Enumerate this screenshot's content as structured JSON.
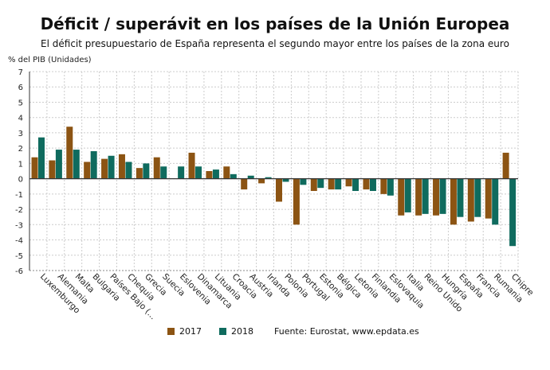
{
  "title": "Déficit / superávit en los países de la Unión Europea",
  "subtitle": "El déficit presupuestario de España representa el segundo mayor entre los países de la zona euro",
  "source": "Fuente: Eurostat, www.epdata.es",
  "chart_data": {
    "type": "bar",
    "ylabel": "% del PIB (Unidades)",
    "ylim": [
      -6,
      7
    ],
    "yticks": [
      -6,
      -5,
      -4,
      -3,
      -2,
      -1,
      0,
      1,
      2,
      3,
      4,
      5,
      6,
      7
    ],
    "grid": true,
    "legend_position": "bottom",
    "categories": [
      "Luxemburgo",
      "Alemania",
      "Malta",
      "Bulgaria",
      "Países Bajo (...",
      "Chequia",
      "Grecia",
      "Suecia",
      "Eslovenia",
      "Dinamarca",
      "Lituania",
      "Croacia",
      "Austria",
      "Irlanda",
      "Polonia",
      "Portugal",
      "Estonia",
      "Bélgica",
      "Letonia",
      "Finlandia",
      "Eslovaquia",
      "Italia",
      "Reino Unido",
      "Hungría",
      "España",
      "Francia",
      "Rumania",
      "Chipre"
    ],
    "series": [
      {
        "name": "2017",
        "color": "#8c5413",
        "values": [
          1.4,
          1.2,
          3.4,
          1.1,
          1.3,
          1.6,
          0.7,
          1.4,
          0.0,
          1.7,
          0.5,
          0.8,
          -0.7,
          -0.3,
          -1.5,
          -3.0,
          -0.8,
          -0.7,
          -0.5,
          -0.7,
          -1.0,
          -2.4,
          -2.4,
          -2.4,
          -3.0,
          -2.8,
          -2.6,
          1.7
        ]
      },
      {
        "name": "2018",
        "color": "#0f6b5e",
        "values": [
          2.7,
          1.9,
          1.9,
          1.8,
          1.5,
          1.1,
          1.0,
          0.8,
          0.8,
          0.8,
          0.6,
          0.3,
          0.2,
          0.1,
          -0.2,
          -0.4,
          -0.6,
          -0.7,
          -0.8,
          -0.8,
          -1.1,
          -2.2,
          -2.3,
          -2.3,
          -2.5,
          -2.5,
          -3.0,
          -4.4
        ]
      }
    ]
  }
}
